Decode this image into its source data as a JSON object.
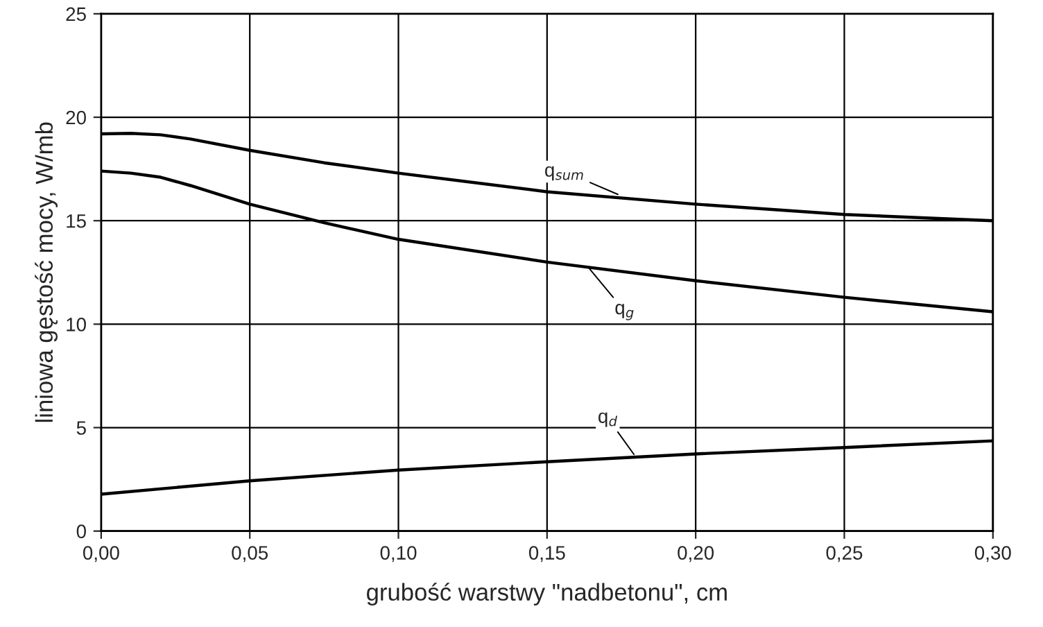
{
  "chart_data": {
    "type": "line",
    "xlabel": "grubość warstwy \"nadbetonu\", cm",
    "ylabel": "liniowa gęstość mocy, W/mb",
    "series": [
      {
        "color": "#000000",
        "x": [
          0,
          0.01,
          0.02,
          0.03,
          0.05,
          0.075,
          0.1,
          0.15,
          0.2,
          0.25,
          0.3
        ],
        "values": [
          19.2,
          19.22,
          19.15,
          18.95,
          18.4,
          17.8,
          17.3,
          16.4,
          15.8,
          15.3,
          15.0
        ]
      },
      {
        "color": "#000000",
        "x": [
          0,
          0.01,
          0.02,
          0.03,
          0.05,
          0.075,
          0.1,
          0.15,
          0.2,
          0.25,
          0.3
        ],
        "values": [
          17.4,
          17.3,
          17.1,
          16.7,
          15.8,
          14.9,
          14.1,
          13.0,
          12.1,
          11.3,
          10.6
        ]
      },
      {
        "color": "#000000",
        "x": [
          0,
          0.05,
          0.1,
          0.15,
          0.2,
          0.25,
          0.3
        ],
        "values": [
          1.78,
          2.43,
          2.95,
          3.35,
          3.73,
          4.04,
          4.36
        ]
      }
    ],
    "annotations": [
      {
        "text": "q$_{sum}$",
        "x": 0.175,
        "y": 16.2
      },
      {
        "text": "q$_{g}$",
        "x": 0.163,
        "y": 12.9
      },
      {
        "text": "q$_{d}$",
        "x": 0.18,
        "y": 3.55
      }
    ],
    "xlim": [
      0,
      0.3
    ],
    "ylim": [
      0,
      25
    ],
    "xticks": [
      {
        "value": 0,
        "label": "0,00"
      },
      {
        "value": 0.05,
        "label": "0,05"
      },
      {
        "value": 0.1,
        "label": "0,10"
      },
      {
        "value": 0.15,
        "label": "0,15"
      },
      {
        "value": 0.2,
        "label": "0,20"
      },
      {
        "value": 0.25,
        "label": "0,25"
      },
      {
        "value": 0.3,
        "label": "0,30"
      }
    ],
    "yticks": [
      0,
      5,
      10,
      15,
      20,
      25
    ],
    "grid": true,
    "legend": false,
    "marker": "none",
    "line_style": "solid"
  }
}
